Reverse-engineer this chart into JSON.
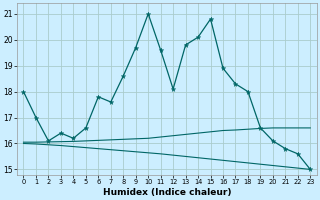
{
  "xlabel": "Humidex (Indice chaleur)",
  "ylabel": "",
  "bg_color": "#cceeff",
  "grid_color": "#aacccc",
  "line_color": "#006666",
  "ylim": [
    14.8,
    21.4
  ],
  "xlim": [
    -0.5,
    23.5
  ],
  "yticks": [
    15,
    16,
    17,
    18,
    19,
    20,
    21
  ],
  "xticks": [
    0,
    1,
    2,
    3,
    4,
    5,
    6,
    7,
    8,
    9,
    10,
    11,
    12,
    13,
    14,
    15,
    16,
    17,
    18,
    19,
    20,
    21,
    22,
    23
  ],
  "line1_x": [
    0,
    1,
    2,
    3,
    4,
    5,
    6,
    7,
    8,
    9,
    10,
    11,
    12,
    13,
    14,
    15,
    16,
    17,
    18,
    19,
    20,
    21,
    22,
    23
  ],
  "line1_y": [
    18.0,
    17.0,
    16.1,
    16.4,
    16.2,
    16.6,
    17.8,
    17.6,
    18.6,
    19.7,
    21.0,
    19.6,
    18.1,
    19.8,
    20.1,
    20.8,
    18.9,
    18.3,
    18.0,
    16.6,
    16.1,
    15.8,
    15.6,
    15.0
  ],
  "line2_x": [
    0,
    1,
    2,
    3,
    4,
    5,
    6,
    7,
    8,
    9,
    10,
    11,
    12,
    13,
    14,
    15,
    16,
    17,
    18,
    19,
    20,
    21,
    22,
    23
  ],
  "line2_y": [
    16.05,
    16.05,
    16.06,
    16.07,
    16.08,
    16.1,
    16.12,
    16.14,
    16.16,
    16.18,
    16.2,
    16.25,
    16.3,
    16.35,
    16.4,
    16.45,
    16.5,
    16.52,
    16.55,
    16.58,
    16.6,
    16.6,
    16.6,
    16.6
  ],
  "line3_x": [
    0,
    1,
    2,
    3,
    4,
    5,
    6,
    7,
    8,
    9,
    10,
    11,
    12,
    13,
    14,
    15,
    16,
    17,
    18,
    19,
    20,
    21,
    22,
    23
  ],
  "line3_y": [
    16.0,
    15.98,
    15.95,
    15.92,
    15.88,
    15.84,
    15.8,
    15.76,
    15.72,
    15.68,
    15.64,
    15.6,
    15.55,
    15.5,
    15.45,
    15.4,
    15.35,
    15.3,
    15.25,
    15.2,
    15.15,
    15.1,
    15.05,
    15.0
  ]
}
